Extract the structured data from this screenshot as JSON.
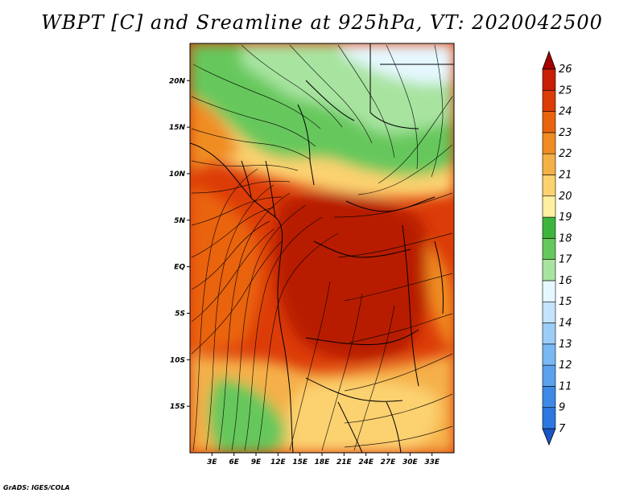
{
  "title": "WBPT [C] and Sreamline at 925hPa, VT: 2020042500",
  "footer": "GrADS: IGES/COLA",
  "map": {
    "variable": "WBPT",
    "units": "C",
    "level": "925hPa",
    "valid_time": "2020042500",
    "lon_range": [
      0,
      36
    ],
    "lat_range": [
      -20,
      24
    ],
    "lon_ticks": [
      {
        "value": 3,
        "label": "3E"
      },
      {
        "value": 6,
        "label": "6E"
      },
      {
        "value": 9,
        "label": "9E"
      },
      {
        "value": 12,
        "label": "12E"
      },
      {
        "value": 15,
        "label": "15E"
      },
      {
        "value": 18,
        "label": "18E"
      },
      {
        "value": 21,
        "label": "21E"
      },
      {
        "value": 24,
        "label": "24E"
      },
      {
        "value": 27,
        "label": "27E"
      },
      {
        "value": 30,
        "label": "30E"
      },
      {
        "value": 33,
        "label": "33E"
      }
    ],
    "lat_ticks": [
      {
        "value": 20,
        "label": "20N"
      },
      {
        "value": 15,
        "label": "15N"
      },
      {
        "value": 10,
        "label": "10N"
      },
      {
        "value": 5,
        "label": "5N"
      },
      {
        "value": 0,
        "label": "EQ"
      },
      {
        "value": -5,
        "label": "5S"
      },
      {
        "value": -10,
        "label": "10S"
      },
      {
        "value": -15,
        "label": "15S"
      }
    ]
  },
  "colorbar": {
    "levels": [
      {
        "label": "7",
        "color": "#1f66d6"
      },
      {
        "label": "9",
        "color": "#2c78e0"
      },
      {
        "label": "11",
        "color": "#3d8ae6"
      },
      {
        "label": "12",
        "color": "#5aa1ee"
      },
      {
        "label": "13",
        "color": "#78b8f3"
      },
      {
        "label": "14",
        "color": "#9ccdf7"
      },
      {
        "label": "15",
        "color": "#c3e4fb"
      },
      {
        "label": "16",
        "color": "#e6f8ff"
      },
      {
        "label": "17",
        "color": "#a8e4a0"
      },
      {
        "label": "18",
        "color": "#66c85c"
      },
      {
        "label": "19",
        "color": "#3db53d"
      },
      {
        "label": "20",
        "color": "#fff0a0"
      },
      {
        "label": "21",
        "color": "#fcd270"
      },
      {
        "label": "22",
        "color": "#f5b048"
      },
      {
        "label": "23",
        "color": "#f08d22"
      },
      {
        "label": "24",
        "color": "#ea6410"
      },
      {
        "label": "25",
        "color": "#dc3c08"
      },
      {
        "label": "26",
        "color": "#c81e05"
      }
    ],
    "over_color": "#a50000",
    "under_color": "#1a55c8"
  }
}
